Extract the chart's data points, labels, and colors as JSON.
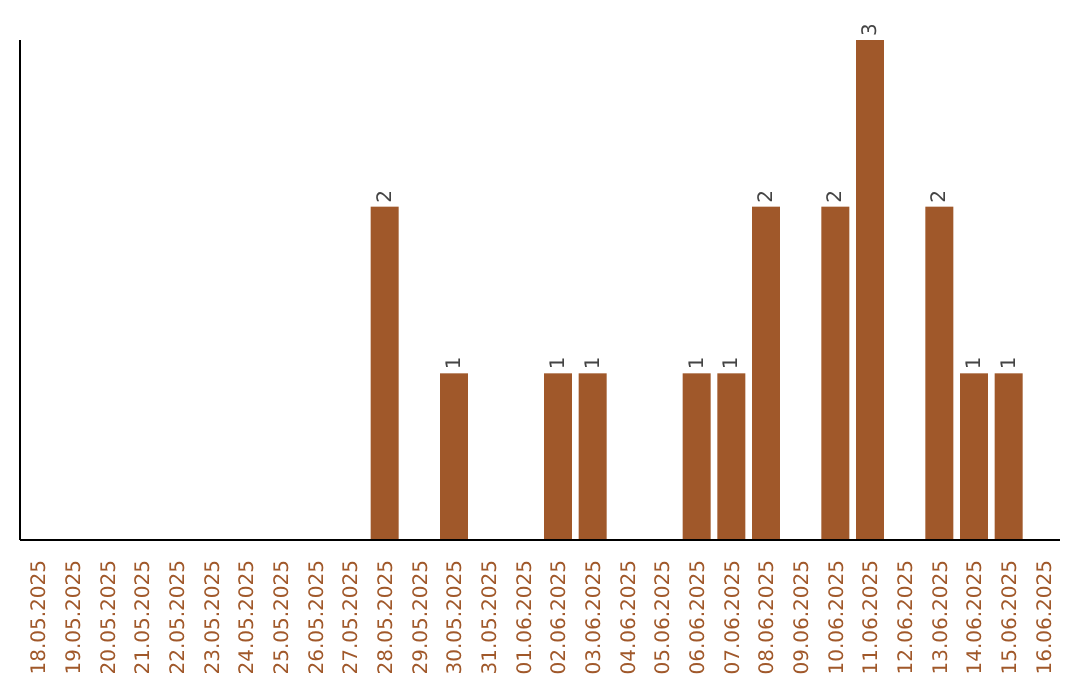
{
  "chart_data": {
    "type": "bar",
    "categories": [
      "18.05.2025",
      "19.05.2025",
      "20.05.2025",
      "21.05.2025",
      "22.05.2025",
      "23.05.2025",
      "24.05.2025",
      "25.05.2025",
      "26.05.2025",
      "27.05.2025",
      "28.05.2025",
      "29.05.2025",
      "30.05.2025",
      "31.05.2025",
      "01.06.2025",
      "02.06.2025",
      "03.06.2025",
      "04.06.2025",
      "05.06.2025",
      "06.06.2025",
      "07.06.2025",
      "08.06.2025",
      "09.06.2025",
      "10.06.2025",
      "11.06.2025",
      "12.06.2025",
      "13.06.2025",
      "14.06.2025",
      "15.06.2025",
      "16.06.2025"
    ],
    "values": [
      0,
      0,
      0,
      0,
      0,
      0,
      0,
      0,
      0,
      0,
      2,
      0,
      1,
      0,
      0,
      1,
      1,
      0,
      0,
      1,
      1,
      2,
      0,
      2,
      3,
      0,
      2,
      1,
      1,
      0
    ],
    "value_labels": [
      null,
      null,
      null,
      null,
      null,
      null,
      null,
      null,
      null,
      null,
      "2",
      null,
      "1",
      null,
      null,
      "1",
      "1",
      null,
      null,
      "1",
      "1",
      "2",
      null,
      "2",
      "3",
      null,
      "2",
      "1",
      "1",
      null
    ],
    "color": "#a0582a",
    "tick_labels": "x",
    "grid": false,
    "legend": false
  }
}
